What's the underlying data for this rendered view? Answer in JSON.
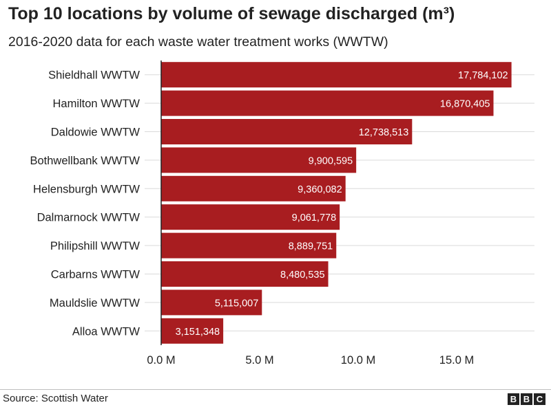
{
  "title": "Top 10 locations by volume of sewage discharged (m³)",
  "subtitle": "2016-2020 data for each waste water treatment works (WWTW)",
  "source": "Source: Scottish Water",
  "logo": "BBC",
  "colors": {
    "bar": "#a81d20",
    "grid": "#d9d9d9",
    "text": "#222222"
  },
  "chart_data": {
    "type": "bar",
    "orientation": "horizontal",
    "categories": [
      "Shieldhall WWTW",
      "Hamilton WWTW",
      "Daldowie WWTW",
      "Bothwellbank WWTW",
      "Helensburgh WWTW",
      "Dalmarnock WWTW",
      "Philipshill WWTW",
      "Carbarns WWTW",
      "Mauldslie WWTW",
      "Alloa WWTW"
    ],
    "values": [
      17784102,
      16870405,
      12738513,
      9900595,
      9360082,
      9061778,
      8889751,
      8480535,
      5115007,
      3151348
    ],
    "value_labels": [
      "17,784,102",
      "16,870,405",
      "12,738,513",
      "9,900,595",
      "9,360,082",
      "9,061,778",
      "8,889,751",
      "8,480,535",
      "5,115,007",
      "3,151,348"
    ],
    "x_ticks": [
      0,
      5000000,
      10000000,
      15000000
    ],
    "x_tick_labels": [
      "0.0 M",
      "5.0 M",
      "10.0 M",
      "15.0 M"
    ],
    "xlim": [
      0,
      18000000
    ],
    "grid": "horizontal",
    "legend": "none"
  }
}
